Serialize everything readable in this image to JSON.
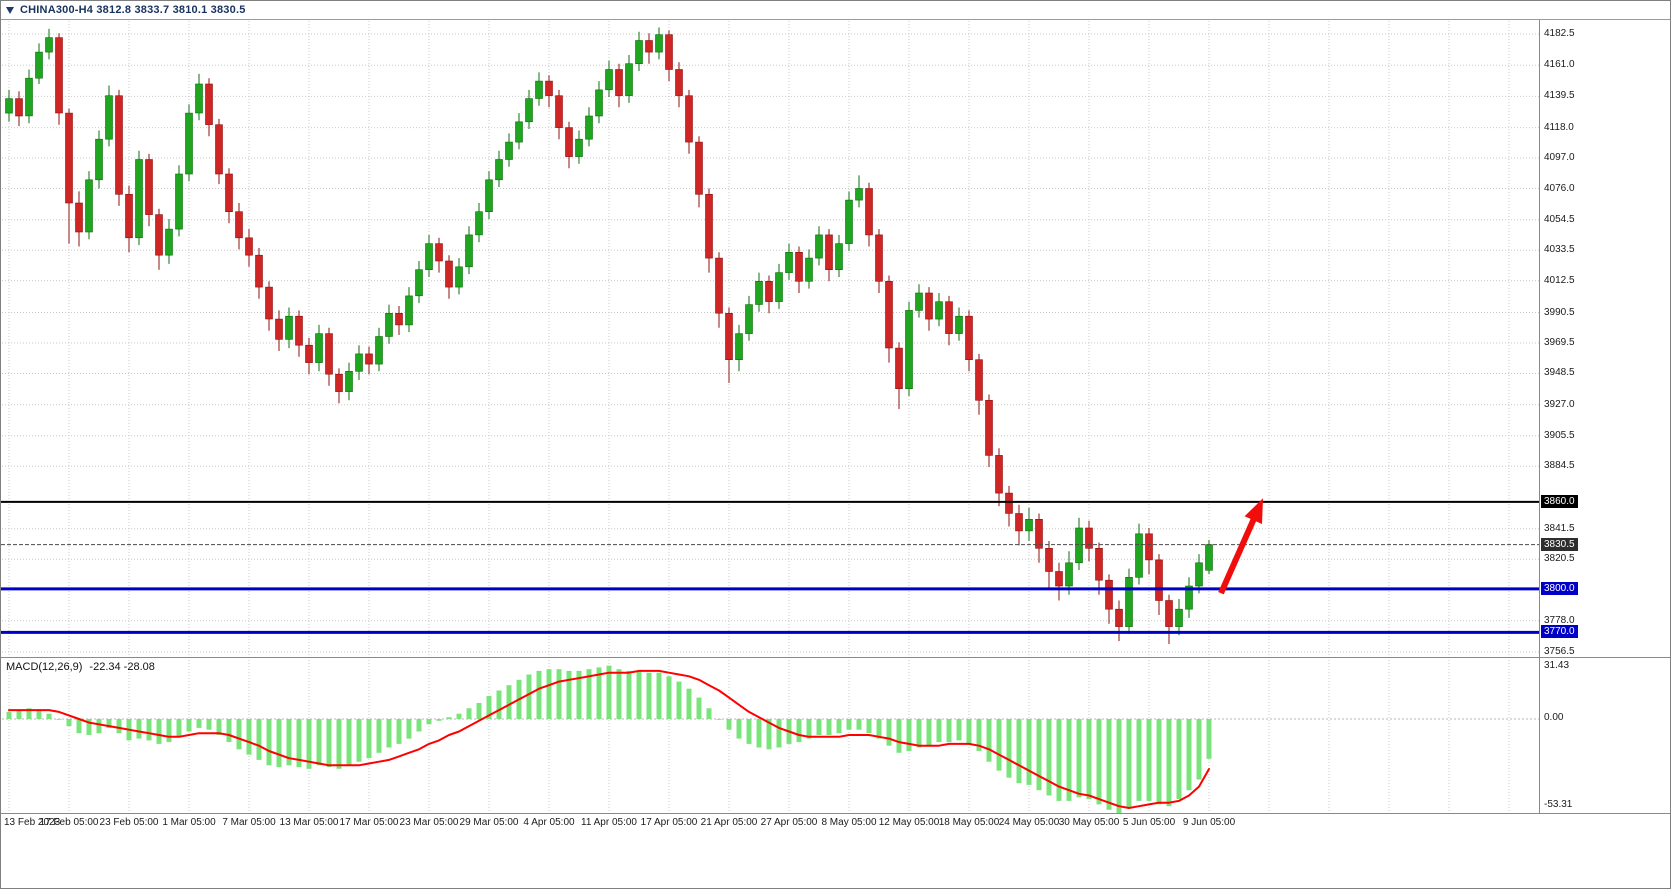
{
  "title_bar": {
    "symbol_title": "CHINA300-H4 3812.8 3833.7 3810.1 3830.5"
  },
  "chart_data": {
    "type": "candlestick",
    "symbol": "CHINA300",
    "timeframe": "H4",
    "ohlc": {
      "open": 3812.8,
      "high": 3833.7,
      "low": 3810.1,
      "close": 3830.5
    },
    "price_axis": {
      "ticks": [
        4182.5,
        4161.0,
        4139.5,
        4118.0,
        4097.0,
        4076.0,
        4054.5,
        4033.5,
        4012.5,
        3990.5,
        3969.5,
        3948.5,
        3927.0,
        3905.5,
        3884.5,
        3841.5,
        3820.5,
        3778.0,
        3756.5
      ],
      "min": 3745.0,
      "max": 4193.0
    },
    "levels": [
      {
        "label": "3860.0",
        "price": 3860.0,
        "color": "#000000",
        "width": 2
      },
      {
        "label": "3800.0",
        "price": 3800.0,
        "color": "#0000C8",
        "width": 3
      },
      {
        "label": "3770.0",
        "price": 3770.0,
        "color": "#0000C8",
        "width": 3
      }
    ],
    "current_price": {
      "label": "3830.5",
      "price": 3830.5,
      "line_color": "#4a4a4a",
      "box_color": "#2e2e2e"
    },
    "x_axis": {
      "labels": [
        "13 Feb 2023",
        "17 Feb 05:00",
        "23 Feb 05:00",
        "1 Mar 05:00",
        "7 Mar 05:00",
        "13 Mar 05:00",
        "17 Mar 05:00",
        "23 Mar 05:00",
        "29 Mar 05:00",
        "4 Apr 05:00",
        "11 Apr 05:00",
        "17 Apr 05:00",
        "21 Apr 05:00",
        "27 Apr 05:00",
        "8 May 05:00",
        "12 May 05:00",
        "18 May 05:00",
        "24 May 05:00",
        "30 May 05:00",
        "5 Jun 05:00",
        "9 Jun 05:00"
      ],
      "candles_per_label": 6
    },
    "candles": [
      [
        4128,
        4144,
        4122,
        4138
      ],
      [
        4138,
        4143,
        4119,
        4126
      ],
      [
        4126,
        4158,
        4121,
        4152
      ],
      [
        4152,
        4176,
        4148,
        4170
      ],
      [
        4170,
        4186,
        4165,
        4180
      ],
      [
        4180,
        4183,
        4120,
        4128
      ],
      [
        4128,
        4131,
        4038,
        4066
      ],
      [
        4066,
        4074,
        4036,
        4046
      ],
      [
        4046,
        4088,
        4041,
        4082
      ],
      [
        4082,
        4116,
        4076,
        4110
      ],
      [
        4110,
        4147,
        4105,
        4140
      ],
      [
        4140,
        4144,
        4064,
        4072
      ],
      [
        4072,
        4078,
        4032,
        4042
      ],
      [
        4042,
        4102,
        4037,
        4096
      ],
      [
        4096,
        4100,
        4050,
        4058
      ],
      [
        4058,
        4062,
        4020,
        4030
      ],
      [
        4030,
        4055,
        4024,
        4048
      ],
      [
        4048,
        4092,
        4043,
        4086
      ],
      [
        4086,
        4134,
        4081,
        4128
      ],
      [
        4128,
        4155,
        4123,
        4148
      ],
      [
        4148,
        4152,
        4112,
        4120
      ],
      [
        4120,
        4124,
        4079,
        4086
      ],
      [
        4086,
        4090,
        4052,
        4060
      ],
      [
        4060,
        4066,
        4034,
        4042
      ],
      [
        4042,
        4048,
        4022,
        4030
      ],
      [
        4030,
        4035,
        4000,
        4008
      ],
      [
        4008,
        4012,
        3978,
        3986
      ],
      [
        3986,
        3992,
        3964,
        3972
      ],
      [
        3972,
        3994,
        3966,
        3988
      ],
      [
        3988,
        3992,
        3960,
        3968
      ],
      [
        3968,
        3973,
        3948,
        3956
      ],
      [
        3956,
        3982,
        3950,
        3976
      ],
      [
        3976,
        3980,
        3940,
        3948
      ],
      [
        3948,
        3952,
        3928,
        3936
      ],
      [
        3936,
        3956,
        3930,
        3950
      ],
      [
        3950,
        3968,
        3944,
        3962
      ],
      [
        3962,
        3967,
        3948,
        3955
      ],
      [
        3955,
        3980,
        3950,
        3974
      ],
      [
        3974,
        3996,
        3969,
        3990
      ],
      [
        3990,
        3995,
        3975,
        3982
      ],
      [
        3982,
        4008,
        3977,
        4002
      ],
      [
        4002,
        4026,
        3997,
        4020
      ],
      [
        4020,
        4044,
        4015,
        4038
      ],
      [
        4038,
        4042,
        4018,
        4026
      ],
      [
        4026,
        4030,
        4000,
        4008
      ],
      [
        4008,
        4028,
        4003,
        4022
      ],
      [
        4022,
        4050,
        4017,
        4044
      ],
      [
        4044,
        4066,
        4039,
        4060
      ],
      [
        4060,
        4088,
        4055,
        4082
      ],
      [
        4082,
        4102,
        4077,
        4096
      ],
      [
        4096,
        4114,
        4091,
        4108
      ],
      [
        4108,
        4128,
        4103,
        4122
      ],
      [
        4122,
        4144,
        4117,
        4138
      ],
      [
        4138,
        4156,
        4133,
        4150
      ],
      [
        4150,
        4154,
        4132,
        4140
      ],
      [
        4140,
        4144,
        4110,
        4118
      ],
      [
        4118,
        4122,
        4090,
        4098
      ],
      [
        4098,
        4116,
        4093,
        4110
      ],
      [
        4110,
        4132,
        4105,
        4126
      ],
      [
        4126,
        4150,
        4121,
        4144
      ],
      [
        4144,
        4164,
        4139,
        4158
      ],
      [
        4158,
        4162,
        4132,
        4140
      ],
      [
        4140,
        4168,
        4135,
        4162
      ],
      [
        4162,
        4184,
        4157,
        4178
      ],
      [
        4178,
        4183,
        4162,
        4170
      ],
      [
        4170,
        4187,
        4165,
        4182
      ],
      [
        4182,
        4185,
        4150,
        4158
      ],
      [
        4158,
        4163,
        4132,
        4140
      ],
      [
        4140,
        4144,
        4100,
        4108
      ],
      [
        4108,
        4112,
        4063,
        4072
      ],
      [
        4072,
        4076,
        4018,
        4028
      ],
      [
        4028,
        4032,
        3980,
        3990
      ],
      [
        3990,
        3994,
        3942,
        3958
      ],
      [
        3958,
        3982,
        3950,
        3976
      ],
      [
        3976,
        4002,
        3971,
        3996
      ],
      [
        3996,
        4018,
        3991,
        4012
      ],
      [
        4012,
        4016,
        3990,
        3998
      ],
      [
        3998,
        4024,
        3993,
        4018
      ],
      [
        4018,
        4038,
        4013,
        4032
      ],
      [
        4032,
        4036,
        4004,
        4012
      ],
      [
        4012,
        4034,
        4007,
        4028
      ],
      [
        4028,
        4050,
        4023,
        4044
      ],
      [
        4044,
        4048,
        4012,
        4020
      ],
      [
        4020,
        4044,
        4015,
        4038
      ],
      [
        4038,
        4074,
        4033,
        4068
      ],
      [
        4068,
        4085,
        4063,
        4076
      ],
      [
        4076,
        4080,
        4036,
        4044
      ],
      [
        4044,
        4048,
        4004,
        4012
      ],
      [
        4012,
        4016,
        3956,
        3966
      ],
      [
        3966,
        3970,
        3924,
        3938
      ],
      [
        3938,
        3998,
        3933,
        3992
      ],
      [
        3992,
        4010,
        3987,
        4004
      ],
      [
        4004,
        4008,
        3978,
        3986
      ],
      [
        3986,
        4004,
        3981,
        3998
      ],
      [
        3998,
        4002,
        3968,
        3976
      ],
      [
        3976,
        3994,
        3971,
        3988
      ],
      [
        3988,
        3992,
        3950,
        3958
      ],
      [
        3958,
        3962,
        3920,
        3930
      ],
      [
        3930,
        3934,
        3884,
        3892
      ],
      [
        3892,
        3897,
        3857,
        3866
      ],
      [
        3866,
        3871,
        3843,
        3852
      ],
      [
        3852,
        3858,
        3830,
        3840
      ],
      [
        3840,
        3856,
        3833,
        3848
      ],
      [
        3848,
        3852,
        3818,
        3828
      ],
      [
        3828,
        3833,
        3800,
        3812
      ],
      [
        3812,
        3818,
        3792,
        3802
      ],
      [
        3802,
        3826,
        3796,
        3818
      ],
      [
        3818,
        3849,
        3813,
        3842
      ],
      [
        3842,
        3847,
        3819,
        3828
      ],
      [
        3828,
        3832,
        3796,
        3806
      ],
      [
        3806,
        3810,
        3776,
        3786
      ],
      [
        3786,
        3792,
        3764,
        3774
      ],
      [
        3774,
        3814,
        3769,
        3808
      ],
      [
        3808,
        3845,
        3803,
        3838
      ],
      [
        3838,
        3842,
        3810,
        3820
      ],
      [
        3820,
        3824,
        3782,
        3792
      ],
      [
        3792,
        3796,
        3762,
        3774
      ],
      [
        3774,
        3793,
        3768,
        3786
      ],
      [
        3786,
        3808,
        3780,
        3802
      ],
      [
        3802,
        3824,
        3797,
        3818
      ],
      [
        3812.8,
        3833.7,
        3810.1,
        3830.5
      ]
    ],
    "macd": {
      "label": "MACD(12,26,9)",
      "values_text": "-22.34 -28.08",
      "macd_value": -22.34,
      "signal_value": -28.08,
      "axis": {
        "max_label": "31.43",
        "zero_label": "0.00",
        "min_label": "-53.31",
        "max": 31.43,
        "min": -53.31
      },
      "histogram": [
        4,
        5,
        6,
        5,
        3,
        0,
        -4,
        -8,
        -9,
        -8,
        -5,
        -8,
        -12,
        -11,
        -12,
        -14,
        -13,
        -10,
        -7,
        -5,
        -6,
        -9,
        -13,
        -17,
        -20,
        -23,
        -26,
        -27,
        -26,
        -27,
        -28,
        -26,
        -27,
        -28,
        -26,
        -24,
        -22,
        -19,
        -16,
        -14,
        -11,
        -7,
        -3,
        -1,
        1,
        3,
        6,
        9,
        13,
        16,
        19,
        22,
        25,
        27,
        28,
        28,
        27,
        27,
        28,
        29,
        30,
        28,
        27,
        27,
        26,
        26,
        24,
        21,
        17,
        12,
        6,
        0,
        -6,
        -11,
        -14,
        -16,
        -17,
        -16,
        -14,
        -13,
        -11,
        -9,
        -9,
        -8,
        -6,
        -6,
        -8,
        -11,
        -15,
        -19,
        -18,
        -16,
        -15,
        -13,
        -13,
        -12,
        -14,
        -18,
        -24,
        -29,
        -33,
        -36,
        -37,
        -40,
        -43,
        -46,
        -46,
        -44,
        -45,
        -48,
        -51,
        -53,
        -50,
        -46,
        -46,
        -48,
        -49,
        -45,
        -40,
        -34,
        -22.34
      ],
      "signal": [
        5,
        5,
        5,
        5,
        5,
        4,
        2,
        0,
        -2,
        -3,
        -4,
        -5,
        -6,
        -7,
        -8,
        -9,
        -10,
        -10,
        -9,
        -8,
        -8,
        -8,
        -9,
        -11,
        -13,
        -15,
        -18,
        -20,
        -22,
        -23,
        -24,
        -25,
        -26,
        -26,
        -26,
        -26,
        -25,
        -24,
        -23,
        -21,
        -19,
        -17,
        -14,
        -12,
        -9,
        -7,
        -4,
        -1,
        2,
        5,
        8,
        11,
        14,
        17,
        19,
        21,
        22,
        23,
        24,
        25,
        26,
        26,
        26,
        27,
        27,
        27,
        26,
        25,
        24,
        22,
        19,
        16,
        12,
        8,
        4,
        1,
        -2,
        -5,
        -7,
        -9,
        -10,
        -10,
        -10,
        -10,
        -9,
        -9,
        -9,
        -10,
        -11,
        -13,
        -14,
        -15,
        -15,
        -15,
        -14,
        -14,
        -14,
        -15,
        -17,
        -20,
        -23,
        -26,
        -29,
        -32,
        -35,
        -38,
        -40,
        -42,
        -43,
        -45,
        -47,
        -49,
        -50,
        -49,
        -48,
        -47,
        -47,
        -46,
        -43,
        -38,
        -28.08
      ]
    },
    "arrow": {
      "start": {
        "index": 121.2,
        "price": 3797
      },
      "end": {
        "index": 125.4,
        "price": 3862.5
      },
      "color": "#f20d0d"
    },
    "colors": {
      "bull_fill": "#1fa51f",
      "bull_stroke": "#0c6f0c",
      "bear_fill": "#cf2525",
      "bear_stroke": "#8f1111",
      "grid": "#c9c9c9",
      "macd_hist": "#7be37b",
      "macd_signal": "#ff0000",
      "arrow": "#f20d0d"
    }
  }
}
